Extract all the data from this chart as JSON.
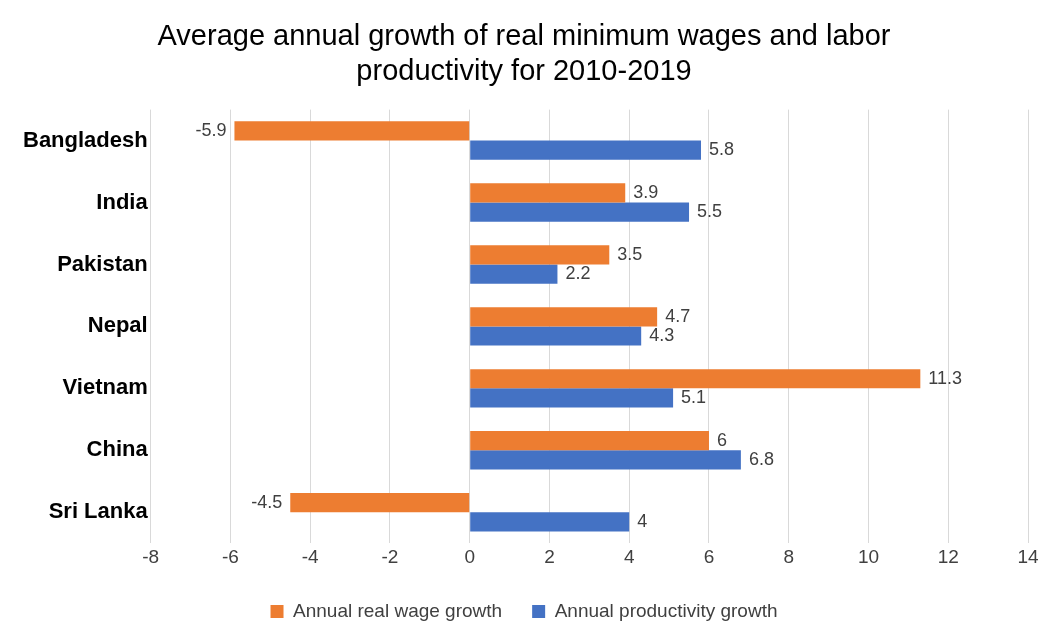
{
  "chart_data": {
    "type": "bar",
    "orientation": "horizontal",
    "title": [
      "Average annual growth of real minimum wages and labor",
      "productivity for 2010-2019"
    ],
    "categories": [
      "Bangladesh",
      "India",
      "Pakistan",
      "Nepal",
      "Vietnam",
      "China",
      "Sri Lanka"
    ],
    "series": [
      {
        "name": "Annual real wage growth",
        "color": "#ed7d31",
        "values": [
          -5.9,
          3.9,
          3.5,
          4.7,
          11.3,
          6,
          -4.5
        ]
      },
      {
        "name": "Annual productivity growth",
        "color": "#4472c4",
        "values": [
          5.8,
          5.5,
          2.2,
          4.3,
          5.1,
          6.8,
          4
        ]
      }
    ],
    "xlim": [
      -8,
      14
    ],
    "xticks": [
      -8,
      -6,
      -4,
      -2,
      0,
      2,
      4,
      6,
      8,
      10,
      12,
      14
    ],
    "grid": "x",
    "legend": "bottom",
    "data_labels": true
  }
}
